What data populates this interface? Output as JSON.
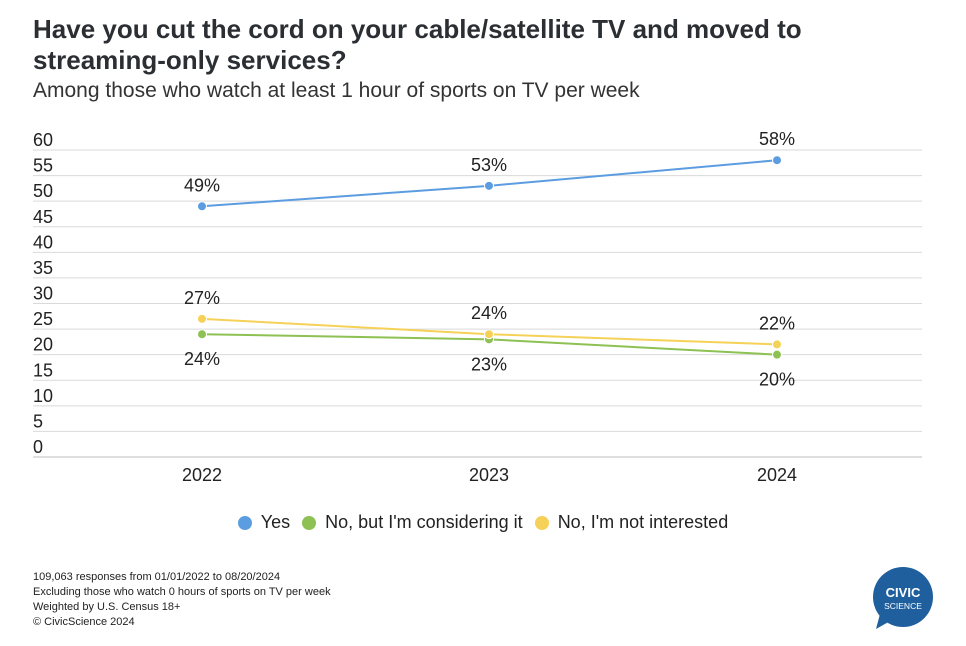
{
  "header": {
    "title": "Have you cut the cord on your cable/satellite TV and moved to streaming-only services?",
    "subtitle": "Among those who watch at least 1 hour of sports on TV per week"
  },
  "chart_data": {
    "type": "line",
    "x": [
      "2022",
      "2023",
      "2024"
    ],
    "ylim": [
      0,
      60
    ],
    "yticks": [
      0,
      5,
      10,
      15,
      20,
      25,
      30,
      35,
      40,
      45,
      50,
      55,
      60
    ],
    "grid": true,
    "legend_position": "bottom",
    "series": [
      {
        "name": "Yes",
        "values": [
          49,
          53,
          58
        ],
        "labels": [
          "49%",
          "53%",
          "58%"
        ],
        "color": "#5b9de0",
        "label_position": "above"
      },
      {
        "name": "No, but I'm considering it",
        "values": [
          24,
          23,
          20
        ],
        "labels": [
          "24%",
          "23%",
          "20%"
        ],
        "color": "#8dc153",
        "label_position": "below"
      },
      {
        "name": "No, I'm not interested",
        "values": [
          27,
          24,
          22
        ],
        "labels": [
          "27%",
          "24%",
          "22%"
        ],
        "color": "#f6d157",
        "label_position": "above"
      }
    ]
  },
  "footer": {
    "lines": [
      "109,063 responses from 01/01/2022 to 08/20/2024",
      "Excluding those who watch 0 hours of sports on TV per week",
      "Weighted by U.S. Census 18+",
      "© CivicScience 2024"
    ]
  },
  "logo": {
    "line1": "CIVIC",
    "line2": "SCIENCE",
    "color": "#1f5f9e"
  }
}
